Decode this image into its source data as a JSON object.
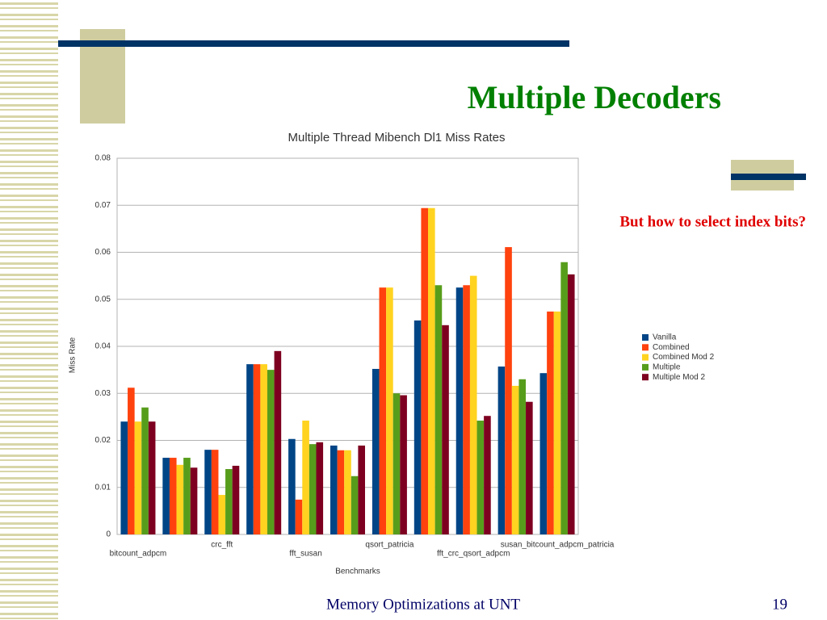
{
  "slide": {
    "title": "Multiple Decoders",
    "callout": "But how to select index bits?",
    "footer": "Memory Optimizations at UNT",
    "page": "19"
  },
  "chart_data": {
    "type": "bar",
    "title": "Multiple Thread Mibench Dl1 Miss Rates",
    "x_label": "Benchmarks",
    "y_label": "Miss Rate",
    "categories": [
      "bitcount_adpcm",
      null,
      "crc_fft",
      null,
      "fft_susan",
      null,
      "qsort_patricia",
      null,
      "fft_crc_qsort_adpcm",
      null,
      "susan_bitcount_adpcm_patricia"
    ],
    "series": [
      {
        "name": "Vanilla",
        "color": "#004586",
        "values": [
          0.024,
          0.0163,
          0.018,
          0.0362,
          0.0203,
          0.0189,
          0.0352,
          0.0455,
          0.0525,
          0.0357,
          0.0343
        ]
      },
      {
        "name": "Combined",
        "color": "#ff420e",
        "values": [
          0.0312,
          0.0163,
          0.018,
          0.0362,
          0.0074,
          0.0179,
          0.0525,
          0.0694,
          0.053,
          0.0611,
          0.0474
        ]
      },
      {
        "name": "Combined Mod 2",
        "color": "#ffd320",
        "values": [
          0.024,
          0.0148,
          0.0084,
          0.0362,
          0.0242,
          0.0179,
          0.0525,
          0.0694,
          0.055,
          0.0316,
          0.0474
        ]
      },
      {
        "name": "Multiple",
        "color": "#579d1c",
        "values": [
          0.027,
          0.0163,
          0.0139,
          0.035,
          0.0192,
          0.0124,
          0.03,
          0.053,
          0.0242,
          0.033,
          0.0579
        ]
      },
      {
        "name": "Multiple Mod 2",
        "color": "#7e0021",
        "values": [
          0.024,
          0.0142,
          0.0146,
          0.039,
          0.0196,
          0.0189,
          0.0296,
          0.0445,
          0.0252,
          0.0282,
          0.0553
        ]
      }
    ],
    "ylim": [
      0,
      0.08
    ],
    "yticks": [
      0,
      0.01,
      0.02,
      0.03,
      0.04,
      0.05,
      0.06,
      0.07,
      0.08
    ],
    "grid": true,
    "legend": "right"
  }
}
